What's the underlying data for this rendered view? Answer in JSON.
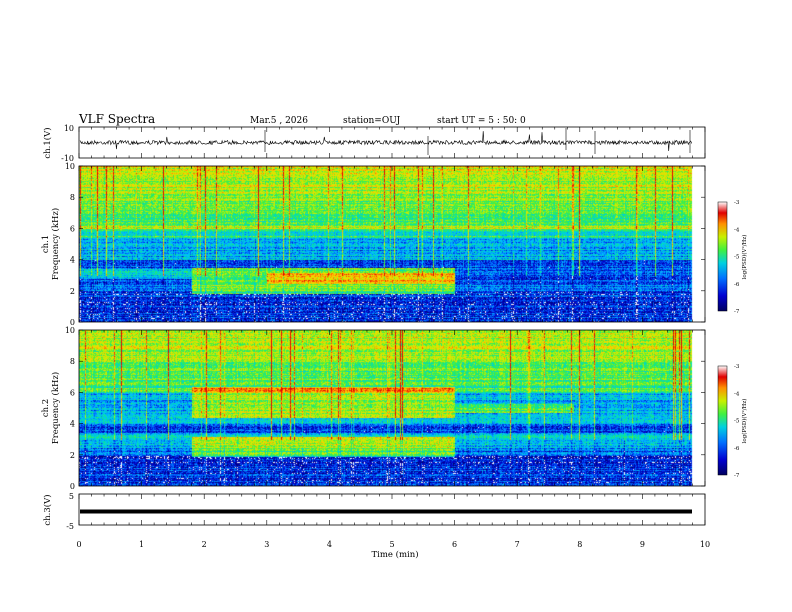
{
  "header": {
    "title": "VLF Spectra",
    "date": "Mar.5 , 2026",
    "station": "station=OUJ",
    "start": "start UT = 5 : 50: 0"
  },
  "colors": {
    "palette": [
      "#000060",
      "#0000c8",
      "#0060ff",
      "#00c0ff",
      "#00e0b0",
      "#40f040",
      "#c8f000",
      "#ffd000",
      "#ff6000",
      "#e00000"
    ]
  },
  "chart_data": {
    "type": "heatmap",
    "title": "VLF Spectra",
    "xlabel": "Time (min)",
    "xlim": [
      0,
      10
    ],
    "x_ticks": [
      "0",
      "1",
      "2",
      "3",
      "4",
      "5",
      "6",
      "7",
      "8",
      "9",
      "10"
    ],
    "panels": [
      {
        "id": "ch1v",
        "ylabel": "ch.1(V)",
        "ylim": [
          -10,
          10
        ],
        "y_ticks": [
          "10",
          "-10"
        ],
        "type": "line"
      },
      {
        "id": "ch1",
        "ylabel": "ch.1 Frequency (kHz)",
        "ylim": [
          0,
          10
        ],
        "y_ticks": [
          "0",
          "2",
          "4",
          "6",
          "8",
          "10"
        ],
        "type": "heatmap",
        "colorbar": {
          "label": "log(PSD)(V²/Hz)",
          "range": [
            -7,
            -3
          ],
          "ticks": [
            "-3",
            "-4",
            "-5",
            "-6",
            "-7"
          ]
        }
      },
      {
        "id": "ch2",
        "ylabel": "ch.2 Frequency (kHz)",
        "ylim": [
          0,
          10
        ],
        "y_ticks": [
          "0",
          "2",
          "4",
          "6",
          "8",
          "10"
        ],
        "type": "heatmap",
        "colorbar": {
          "label": "log(PSD)(V²/Hz)",
          "range": [
            -7,
            -3
          ],
          "ticks": [
            "-3",
            "-4",
            "-5",
            "-6",
            "-7"
          ]
        }
      },
      {
        "id": "ch3v",
        "ylabel": "ch.3(V)",
        "ylim": [
          -5,
          5
        ],
        "y_ticks": [
          "5",
          "-5"
        ],
        "type": "line"
      }
    ]
  }
}
